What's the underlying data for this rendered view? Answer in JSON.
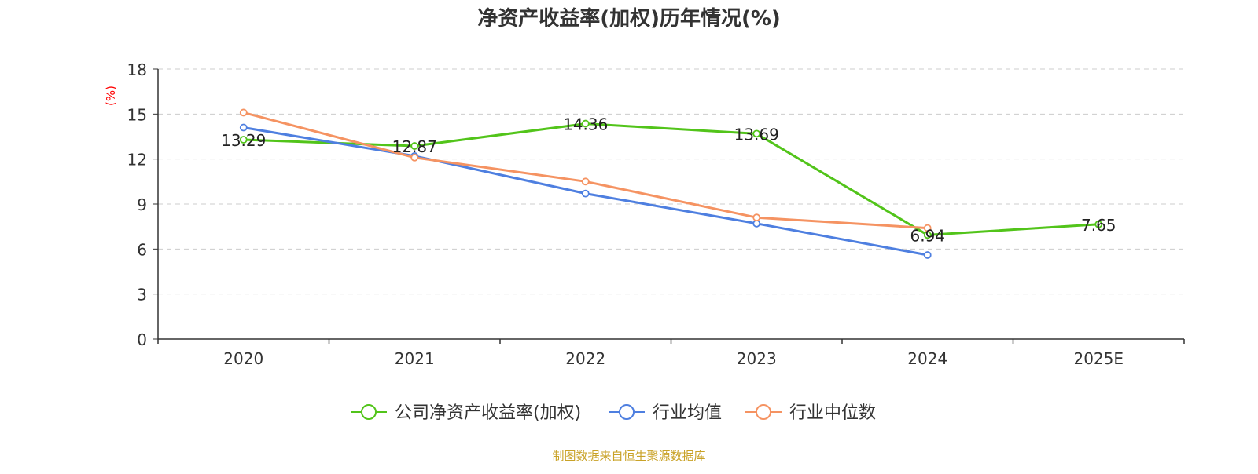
{
  "chart_data": {
    "type": "line",
    "title": "净资产收益率(加权)历年情况(%)",
    "ylabel": "(%)",
    "xlabel": "",
    "categories": [
      "2020",
      "2021",
      "2022",
      "2023",
      "2024",
      "2025E"
    ],
    "ylim": [
      0,
      18
    ],
    "yticks": [
      0,
      3,
      6,
      9,
      12,
      15,
      18
    ],
    "grid": true,
    "legend_position": "bottom-center",
    "series": [
      {
        "name": "公司净资产收益率(加权)",
        "color": "#52c41a",
        "values": [
          13.29,
          12.87,
          14.36,
          13.69,
          6.94,
          7.65
        ],
        "labels": [
          "13.29",
          "12.87",
          "14.36",
          "13.69",
          "6.94",
          "7.65"
        ]
      },
      {
        "name": "行业均值",
        "color": "#4e7fe0",
        "values": [
          14.1,
          12.2,
          9.7,
          7.7,
          5.6,
          null
        ]
      },
      {
        "name": "行业中位数",
        "color": "#f59362",
        "values": [
          15.1,
          12.1,
          10.5,
          8.1,
          7.4,
          null
        ]
      }
    ],
    "source": "制图数据来自恒生聚源数据库"
  }
}
